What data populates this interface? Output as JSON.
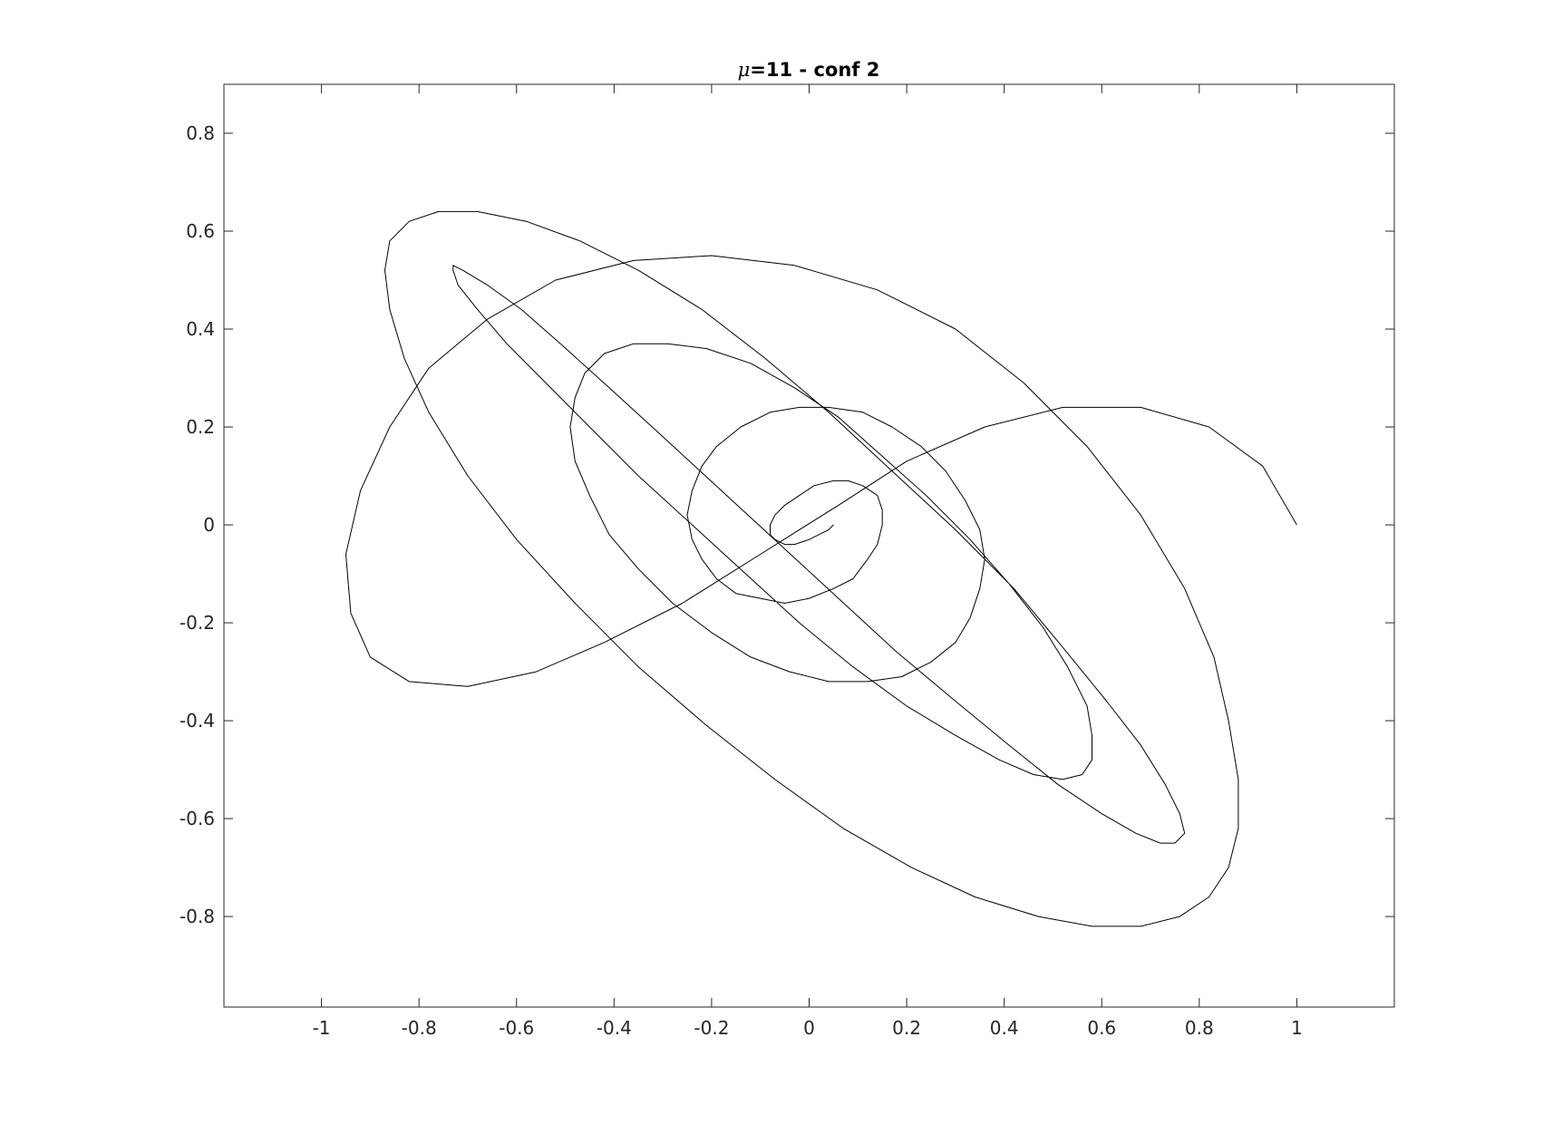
{
  "chart_data": {
    "type": "line",
    "title_symbol": "μ",
    "title_rest": "=11 - conf 2",
    "xlabel": "",
    "ylabel": "",
    "xlim": [
      -1.2,
      1.2
    ],
    "ylim": [
      -0.985,
      0.9
    ],
    "grid": false,
    "legend": "none",
    "xticks": [
      {
        "value": -1,
        "label": "-1"
      },
      {
        "value": -0.8,
        "label": "-0.8"
      },
      {
        "value": -0.6,
        "label": "-0.6"
      },
      {
        "value": -0.4,
        "label": "-0.4"
      },
      {
        "value": -0.2,
        "label": "-0.2"
      },
      {
        "value": 0,
        "label": "0"
      },
      {
        "value": 0.2,
        "label": "0.2"
      },
      {
        "value": 0.4,
        "label": "0.4"
      },
      {
        "value": 0.6,
        "label": "0.6"
      },
      {
        "value": 0.8,
        "label": "0.8"
      },
      {
        "value": 1,
        "label": "1"
      }
    ],
    "yticks": [
      {
        "value": 0.8,
        "label": "0.8"
      },
      {
        "value": 0.6,
        "label": "0.6"
      },
      {
        "value": 0.4,
        "label": "0.4"
      },
      {
        "value": 0.2,
        "label": "0.2"
      },
      {
        "value": 0,
        "label": "0"
      },
      {
        "value": -0.2,
        "label": "-0.2"
      },
      {
        "value": -0.4,
        "label": "-0.4"
      },
      {
        "value": -0.6,
        "label": "-0.6"
      },
      {
        "value": -0.8,
        "label": "-0.8"
      }
    ],
    "line_color": "#000000",
    "axis_color": "#262626",
    "series": [
      {
        "x": [
          1.0,
          0.93,
          0.82,
          0.68,
          0.52,
          0.36,
          0.2,
          0.06,
          -0.1,
          -0.26,
          -0.42,
          -0.56,
          -0.7,
          -0.82,
          -0.9,
          -0.94,
          -0.95,
          -0.92,
          -0.86,
          -0.78,
          -0.66,
          -0.52,
          -0.36,
          -0.2,
          -0.03,
          0.14,
          0.3,
          0.44,
          0.57,
          0.68,
          0.77,
          0.83,
          0.86,
          0.88,
          0.88,
          0.86,
          0.82,
          0.76,
          0.68,
          0.58,
          0.47,
          0.34,
          0.21,
          0.07,
          -0.07,
          -0.21,
          -0.35,
          -0.48,
          -0.6,
          -0.7,
          -0.78,
          -0.83,
          -0.86,
          -0.87,
          -0.86,
          -0.82,
          -0.76,
          -0.68,
          -0.58,
          -0.47,
          -0.35,
          -0.22,
          -0.09,
          0.04,
          0.17,
          0.3,
          0.42,
          0.52,
          0.61,
          0.68,
          0.73,
          0.76,
          0.77,
          0.75,
          0.72,
          0.67,
          0.6,
          0.51,
          0.41,
          0.3,
          0.18,
          0.06,
          -0.06,
          -0.18,
          -0.3,
          -0.41,
          -0.51,
          -0.59,
          -0.66,
          -0.71,
          -0.73,
          -0.73,
          -0.72,
          -0.68,
          -0.62,
          -0.54,
          -0.45,
          -0.35,
          -0.24,
          -0.13,
          -0.02,
          0.09,
          0.2,
          0.3,
          0.39,
          0.46,
          0.52,
          0.56,
          0.58,
          0.58,
          0.57,
          0.53,
          0.48,
          0.41,
          0.33,
          0.24,
          0.15,
          0.06,
          -0.03,
          -0.12,
          -0.21,
          -0.29,
          -0.36,
          -0.42,
          -0.46,
          -0.48,
          -0.49,
          -0.48,
          -0.45,
          -0.41,
          -0.35,
          -0.28,
          -0.2,
          -0.12,
          -0.04,
          0.04,
          0.12,
          0.19,
          0.25,
          0.3,
          0.33,
          0.35,
          0.36,
          0.35,
          0.32,
          0.28,
          0.23,
          0.17,
          0.11,
          0.04,
          -0.02,
          -0.08,
          -0.14,
          -0.19,
          -0.22,
          -0.24,
          -0.25,
          -0.24,
          -0.22,
          -0.19,
          -0.15,
          -0.1,
          -0.05,
          0.0,
          0.05,
          0.09,
          0.12,
          0.14,
          0.15,
          0.15,
          0.14,
          0.11,
          0.08,
          0.05,
          0.01,
          -0.02,
          -0.05,
          -0.07,
          -0.08,
          -0.08,
          -0.07,
          -0.05,
          -0.03,
          0.0,
          0.02,
          0.04,
          0.05
        ],
        "y": [
          0.0,
          0.12,
          0.2,
          0.24,
          0.24,
          0.2,
          0.13,
          0.04,
          -0.06,
          -0.16,
          -0.24,
          -0.3,
          -0.33,
          -0.32,
          -0.27,
          -0.18,
          -0.06,
          0.07,
          0.2,
          0.32,
          0.42,
          0.5,
          0.54,
          0.55,
          0.53,
          0.48,
          0.4,
          0.29,
          0.16,
          0.02,
          -0.13,
          -0.27,
          -0.4,
          -0.52,
          -0.62,
          -0.7,
          -0.76,
          -0.8,
          -0.82,
          -0.82,
          -0.8,
          -0.76,
          -0.7,
          -0.62,
          -0.52,
          -0.41,
          -0.29,
          -0.16,
          -0.03,
          0.1,
          0.23,
          0.34,
          0.44,
          0.52,
          0.58,
          0.62,
          0.64,
          0.64,
          0.62,
          0.58,
          0.52,
          0.44,
          0.34,
          0.23,
          0.11,
          -0.01,
          -0.13,
          -0.25,
          -0.36,
          -0.45,
          -0.53,
          -0.59,
          -0.63,
          -0.65,
          -0.65,
          -0.63,
          -0.59,
          -0.53,
          -0.45,
          -0.36,
          -0.26,
          -0.15,
          -0.04,
          0.07,
          0.18,
          0.28,
          0.37,
          0.44,
          0.49,
          0.52,
          0.53,
          0.52,
          0.49,
          0.44,
          0.37,
          0.29,
          0.2,
          0.1,
          0.0,
          -0.1,
          -0.2,
          -0.29,
          -0.37,
          -0.43,
          -0.48,
          -0.51,
          -0.52,
          -0.51,
          -0.48,
          -0.43,
          -0.37,
          -0.29,
          -0.21,
          -0.12,
          -0.03,
          0.06,
          0.14,
          0.22,
          0.28,
          0.33,
          0.36,
          0.37,
          0.37,
          0.35,
          0.31,
          0.26,
          0.2,
          0.13,
          0.06,
          -0.02,
          -0.09,
          -0.16,
          -0.22,
          -0.27,
          -0.3,
          -0.32,
          -0.32,
          -0.31,
          -0.28,
          -0.24,
          -0.19,
          -0.13,
          -0.07,
          -0.01,
          0.05,
          0.11,
          0.16,
          0.2,
          0.23,
          0.24,
          0.24,
          0.23,
          0.2,
          0.16,
          0.12,
          0.07,
          0.02,
          -0.03,
          -0.07,
          -0.11,
          -0.14,
          -0.15,
          -0.16,
          -0.15,
          -0.13,
          -0.11,
          -0.07,
          -0.04,
          0.0,
          0.03,
          0.06,
          0.08,
          0.09,
          0.09,
          0.08,
          0.06,
          0.04,
          0.02,
          0.0,
          -0.02,
          -0.03,
          -0.04,
          -0.04,
          -0.03,
          -0.02,
          -0.01,
          0.0
        ]
      }
    ]
  }
}
